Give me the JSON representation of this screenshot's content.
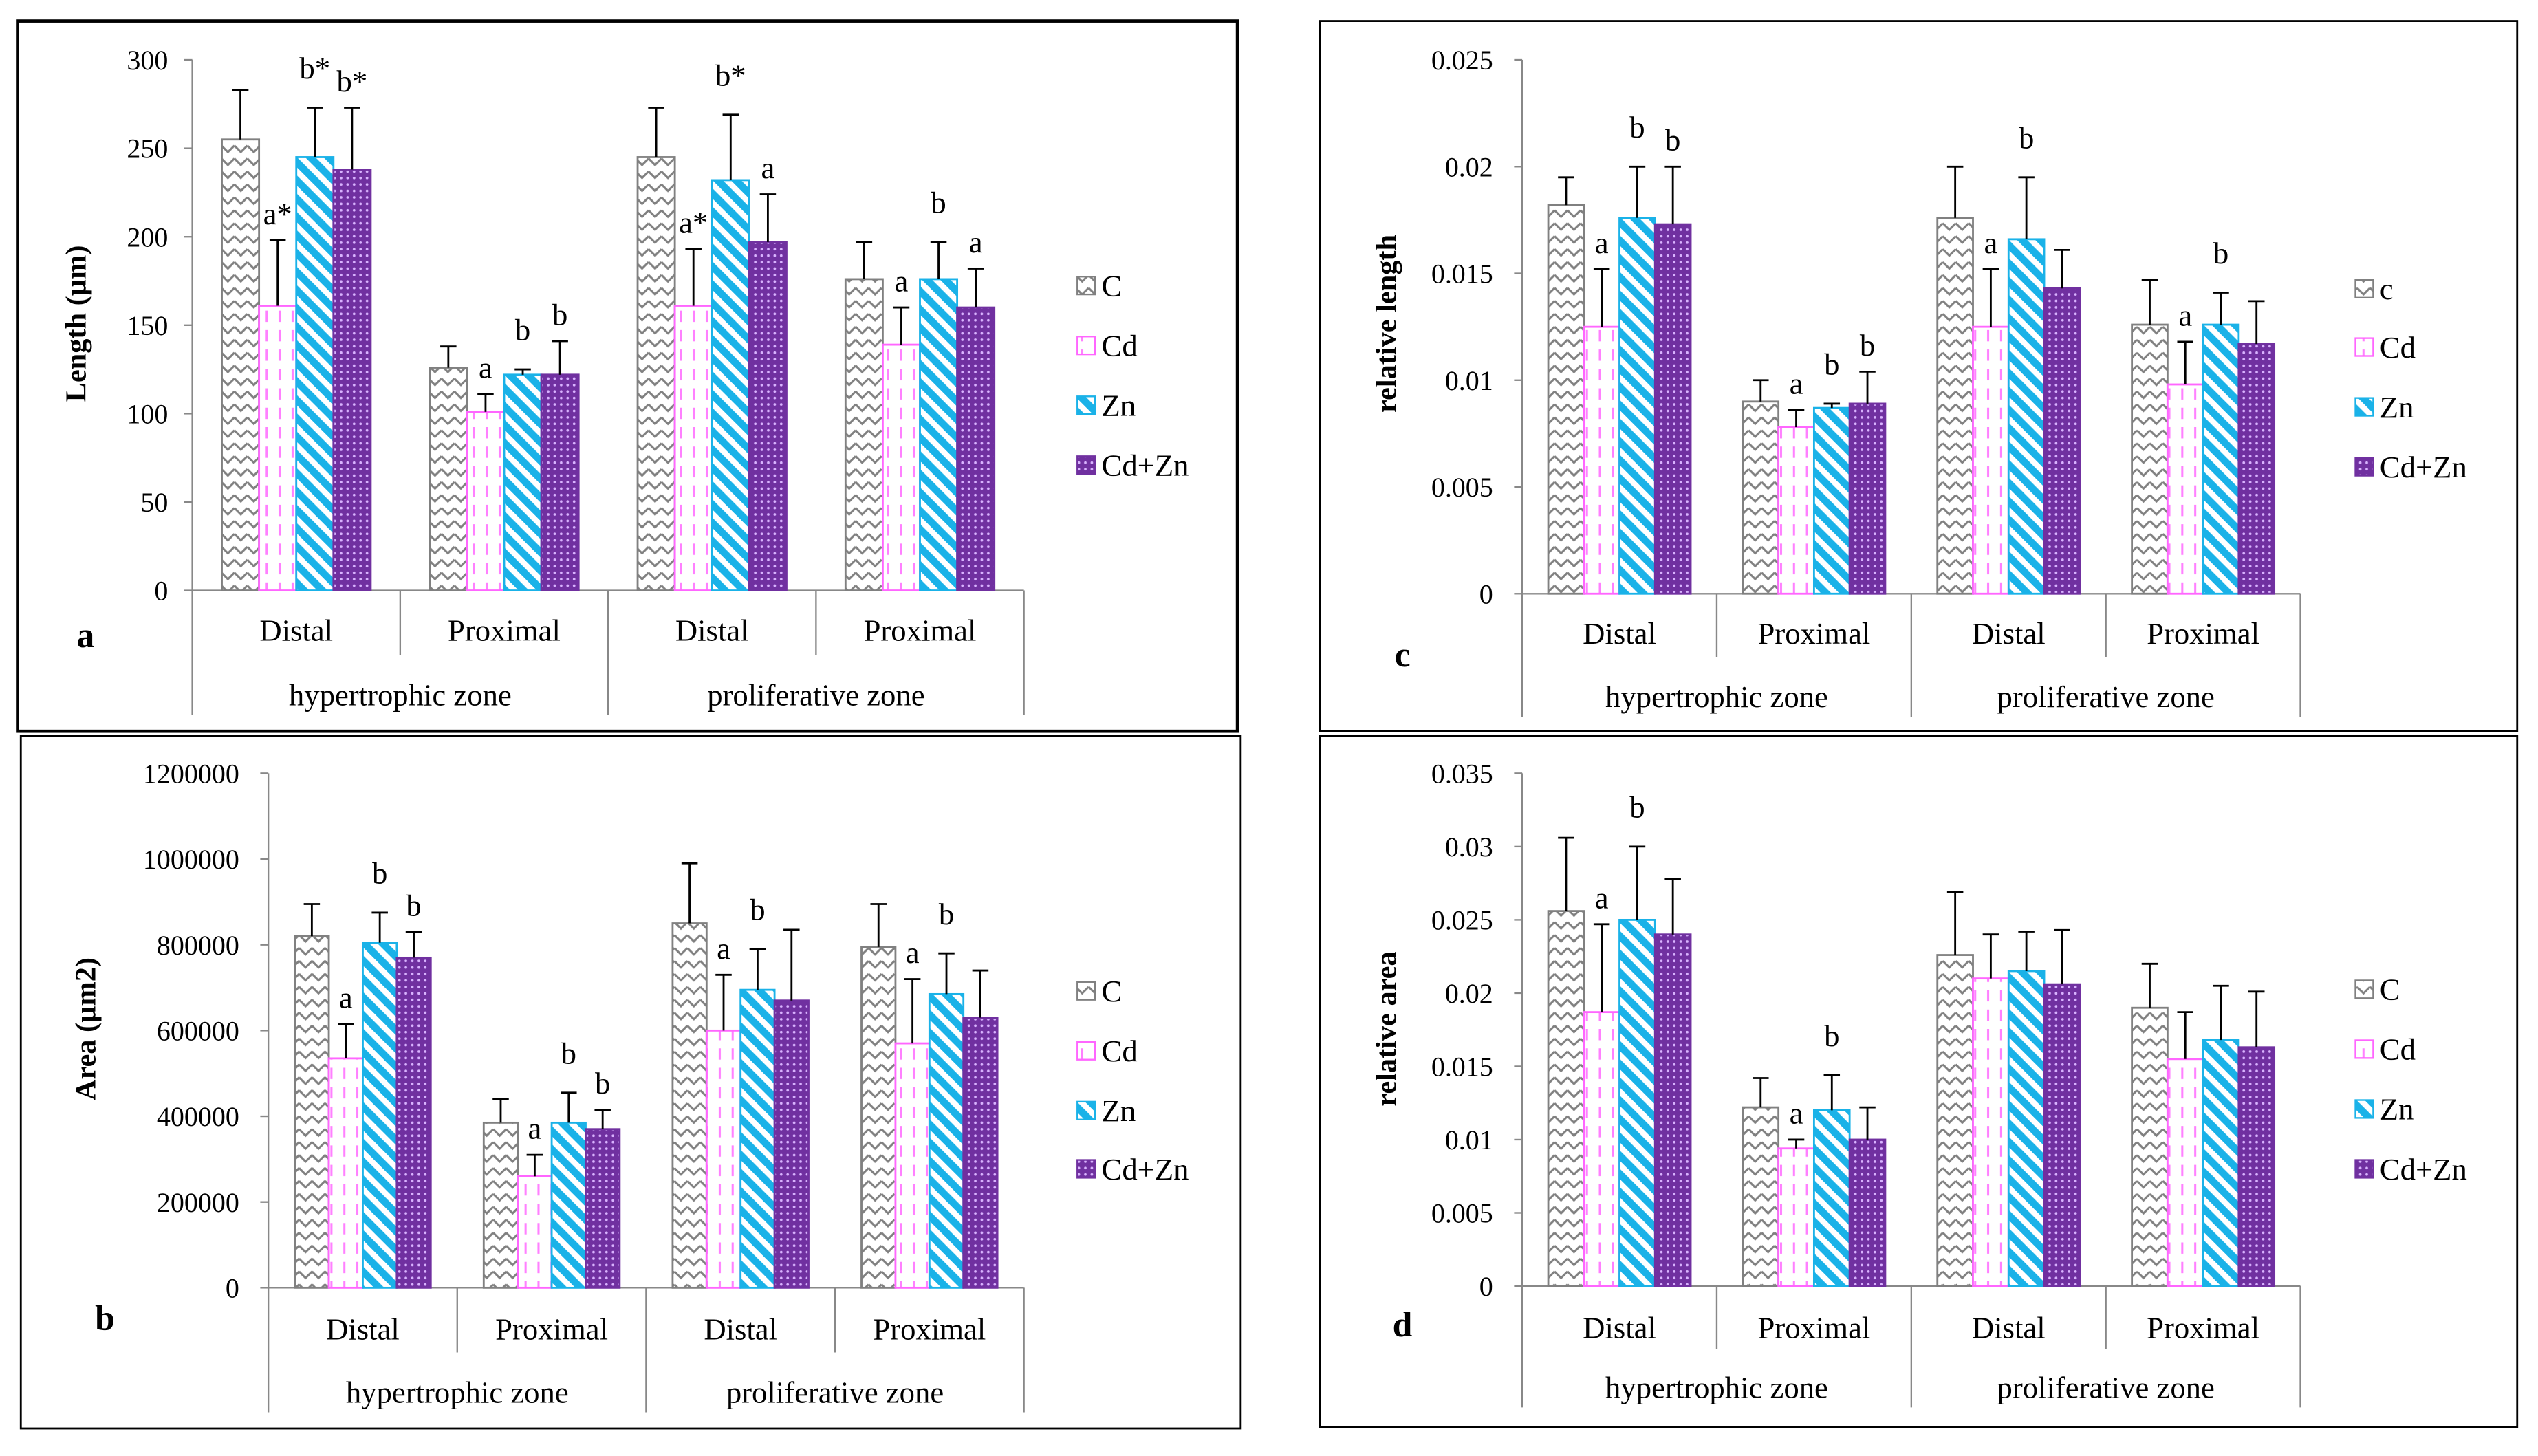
{
  "chart_data": [
    {
      "panel": "a",
      "type": "bar",
      "ylabel": "Length (µm)",
      "ylim": [
        0,
        300
      ],
      "yticks": [
        0,
        50,
        100,
        150,
        200,
        250,
        300
      ],
      "categories": [
        "Distal",
        "Proximal",
        "Distal",
        "Proximal"
      ],
      "groups": [
        "hypertrophic zone",
        "proliferative zone"
      ],
      "legend": [
        "C",
        "Cd",
        "Zn",
        "Cd+Zn"
      ],
      "series": [
        {
          "name": "C",
          "values": [
            255,
            126,
            245,
            176
          ],
          "errors": [
            28,
            12,
            28,
            21
          ]
        },
        {
          "name": "Cd",
          "values": [
            161,
            101,
            161,
            139
          ],
          "errors": [
            37,
            10,
            32,
            21
          ]
        },
        {
          "name": "Zn",
          "values": [
            245,
            122,
            232,
            176
          ],
          "errors": [
            28,
            3,
            37,
            21
          ]
        },
        {
          "name": "Cd+Zn",
          "values": [
            238,
            122,
            197,
            160
          ],
          "errors": [
            35,
            19,
            27,
            22
          ]
        }
      ],
      "annotations": [
        [
          "",
          "",
          "",
          ""
        ],
        [
          "a*",
          "a",
          "a*",
          "a"
        ],
        [
          "b*",
          "b",
          "b*",
          "b"
        ],
        [
          "b*",
          "b",
          "a",
          "a"
        ]
      ]
    },
    {
      "panel": "b",
      "type": "bar",
      "ylabel": "Area (µm2)",
      "ylim": [
        0,
        1200000
      ],
      "yticks": [
        0,
        200000,
        400000,
        600000,
        800000,
        1000000,
        1200000
      ],
      "categories": [
        "Distal",
        "Proximal",
        "Distal",
        "Proximal"
      ],
      "groups": [
        "hypertrophic zone",
        "proliferative zone"
      ],
      "legend": [
        "C",
        "Cd",
        "Zn",
        "Cd+Zn"
      ],
      "series": [
        {
          "name": "C",
          "values": [
            820000,
            385000,
            850000,
            795000
          ],
          "errors": [
            75000,
            55000,
            140000,
            100000
          ]
        },
        {
          "name": "Cd",
          "values": [
            535000,
            260000,
            600000,
            570000
          ],
          "errors": [
            80000,
            50000,
            130000,
            150000
          ]
        },
        {
          "name": "Zn",
          "values": [
            805000,
            385000,
            695000,
            685000
          ],
          "errors": [
            70000,
            70000,
            95000,
            95000
          ]
        },
        {
          "name": "Cd+Zn",
          "values": [
            770000,
            370000,
            670000,
            630000
          ],
          "errors": [
            60000,
            45000,
            165000,
            110000
          ]
        }
      ],
      "annotations": [
        [
          "",
          "",
          "",
          ""
        ],
        [
          "a",
          "a",
          "a",
          "a"
        ],
        [
          "b",
          "b",
          "b",
          "b"
        ],
        [
          "b",
          "b",
          "",
          ""
        ]
      ]
    },
    {
      "panel": "c",
      "type": "bar",
      "ylabel": "relative length",
      "ylim": [
        0,
        0.025
      ],
      "yticks": [
        0,
        0.005,
        0.01,
        0.015,
        0.02,
        0.025
      ],
      "categories": [
        "Distal",
        "Proximal",
        "Distal",
        "Proximal"
      ],
      "groups": [
        "hypertrophic zone",
        "proliferative zone"
      ],
      "legend": [
        "c",
        "Cd",
        "Zn",
        "Cd+Zn"
      ],
      "series": [
        {
          "name": "c",
          "values": [
            0.0182,
            0.009,
            0.0176,
            0.0126
          ],
          "errors": [
            0.0013,
            0.001,
            0.0024,
            0.0021
          ]
        },
        {
          "name": "Cd",
          "values": [
            0.0125,
            0.0078,
            0.0125,
            0.0098
          ],
          "errors": [
            0.0027,
            0.0008,
            0.0027,
            0.002
          ]
        },
        {
          "name": "Zn",
          "values": [
            0.0176,
            0.0087,
            0.0166,
            0.0126
          ],
          "errors": [
            0.0024,
            0.0002,
            0.0029,
            0.0015
          ]
        },
        {
          "name": "Cd+Zn",
          "values": [
            0.0173,
            0.0089,
            0.0143,
            0.0117
          ],
          "errors": [
            0.0027,
            0.0015,
            0.0018,
            0.002
          ]
        }
      ],
      "annotations": [
        [
          "",
          "",
          "",
          ""
        ],
        [
          "a",
          "a",
          "a",
          "a"
        ],
        [
          "b",
          "b",
          "b",
          "b"
        ],
        [
          "b",
          "b",
          "",
          ""
        ]
      ]
    },
    {
      "panel": "d",
      "type": "bar",
      "ylabel": "relative area",
      "ylim": [
        0,
        0.035
      ],
      "yticks": [
        0,
        0.005,
        0.01,
        0.015,
        0.02,
        0.025,
        0.03,
        0.035
      ],
      "categories": [
        "Distal",
        "Proximal",
        "Distal",
        "Proximal"
      ],
      "groups": [
        "hypertrophic zone",
        "proliferative zone"
      ],
      "legend": [
        "C",
        "Cd",
        "Zn",
        "Cd+Zn"
      ],
      "series": [
        {
          "name": "C",
          "values": [
            0.0256,
            0.0122,
            0.0226,
            0.019
          ],
          "errors": [
            0.005,
            0.002,
            0.0043,
            0.003
          ]
        },
        {
          "name": "Cd",
          "values": [
            0.0187,
            0.0094,
            0.021,
            0.0155
          ],
          "errors": [
            0.006,
            0.0006,
            0.003,
            0.0032
          ]
        },
        {
          "name": "Zn",
          "values": [
            0.025,
            0.012,
            0.0215,
            0.0168
          ],
          "errors": [
            0.005,
            0.0024,
            0.0027,
            0.0037
          ]
        },
        {
          "name": "Cd+Zn",
          "values": [
            0.024,
            0.01,
            0.0206,
            0.0163
          ],
          "errors": [
            0.0038,
            0.0022,
            0.0037,
            0.0038
          ]
        }
      ],
      "annotations": [
        [
          "",
          "",
          "",
          ""
        ],
        [
          "a",
          "a",
          "",
          ""
        ],
        [
          "b",
          "b",
          "",
          ""
        ],
        [
          "",
          "",
          "",
          ""
        ]
      ]
    }
  ],
  "colors": {
    "C": "#808080",
    "Cd": "#ff66ff",
    "Zn": "#1ab2e8",
    "Cd+Zn": "#7030a0"
  }
}
